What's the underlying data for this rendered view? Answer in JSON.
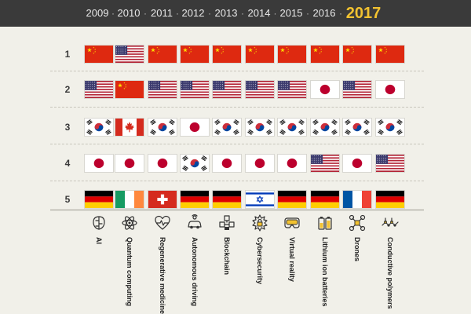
{
  "years": [
    "2009",
    "2010",
    "2011",
    "2012",
    "2013",
    "2014",
    "2015",
    "2016",
    "2017"
  ],
  "current_year": "2017",
  "separator": "·",
  "colors": {
    "header_bg": "#3a3a3a",
    "current_year": "#f2c230",
    "background": "#f1f0e9"
  },
  "ranks": [
    "1",
    "2",
    "3",
    "4",
    "5"
  ],
  "rows": [
    [
      "china",
      "usa",
      "china",
      "china",
      "china",
      "china",
      "china",
      "china",
      "china",
      "china"
    ],
    [
      "usa",
      "china",
      "usa",
      "usa",
      "usa",
      "usa",
      "usa",
      "japan",
      "usa",
      "japan"
    ],
    [
      "south-korea",
      "canada",
      "south-korea",
      "japan",
      "south-korea",
      "south-korea",
      "south-korea",
      "south-korea",
      "south-korea",
      "south-korea"
    ],
    [
      "japan",
      "japan",
      "japan",
      "south-korea",
      "japan",
      "japan",
      "japan",
      "usa",
      "japan",
      "usa"
    ],
    [
      "germany",
      "ireland",
      "switzerland",
      "germany",
      "germany",
      "israel",
      "germany",
      "germany",
      "france",
      "germany"
    ]
  ],
  "technologies": [
    {
      "label": "AI",
      "icon": "brain-chip-icon"
    },
    {
      "label": "Quantum computing",
      "icon": "atom-icon"
    },
    {
      "label": "Regenerative medicine",
      "icon": "heart-pulse-icon"
    },
    {
      "label": "Autonomous driving",
      "icon": "car-icon"
    },
    {
      "label": "Blockchain",
      "icon": "cubes-icon"
    },
    {
      "label": "Cybersecurity",
      "icon": "lock-shield-icon"
    },
    {
      "label": "Virtual reality",
      "icon": "vr-headset-icon"
    },
    {
      "label": "Lithium ion batteries",
      "icon": "battery-icon"
    },
    {
      "label": "Drones",
      "icon": "drone-icon"
    },
    {
      "label": "Conductive polymers",
      "icon": "polymer-chain-icon"
    }
  ]
}
